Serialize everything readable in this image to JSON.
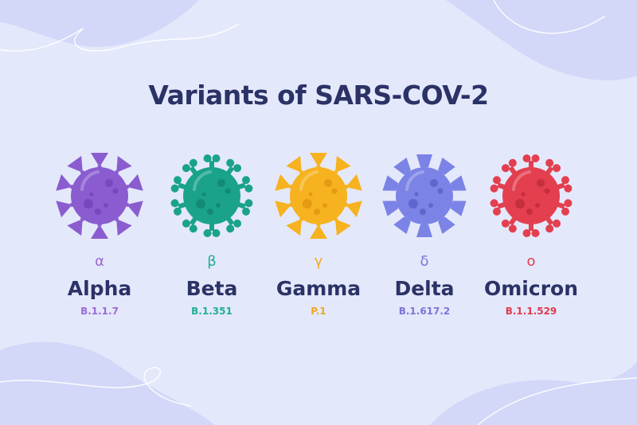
{
  "title": "Variants of SARS-COV-2",
  "variants": [
    {
      "letter": "α",
      "name": "Alpha",
      "code": "B.1.1.7",
      "color": "#9a6bd8",
      "body": "#8a5cd0",
      "spots": "#7548bd",
      "spike": "triangle"
    },
    {
      "letter": "β",
      "name": "Beta",
      "code": "B.1.351",
      "color": "#1fae95",
      "body": "#1aa38a",
      "spots": "#138a74",
      "spike": "bone"
    },
    {
      "letter": "γ",
      "name": "Gamma",
      "code": "P.1",
      "color": "#f2a81e",
      "body": "#f6b21f",
      "spots": "#e49a12",
      "spike": "triangle"
    },
    {
      "letter": "δ",
      "name": "Delta",
      "code": "B.1.617.2",
      "color": "#7f73d6",
      "body": "#7b83e6",
      "spots": "#5f67cf",
      "spike": "trapezoid"
    },
    {
      "letter": "ο",
      "name": "Omicron",
      "code": "B.1.1.529",
      "color": "#e03b4c",
      "body": "#e33f4f",
      "spots": "#c52e3d",
      "spike": "bone"
    }
  ]
}
